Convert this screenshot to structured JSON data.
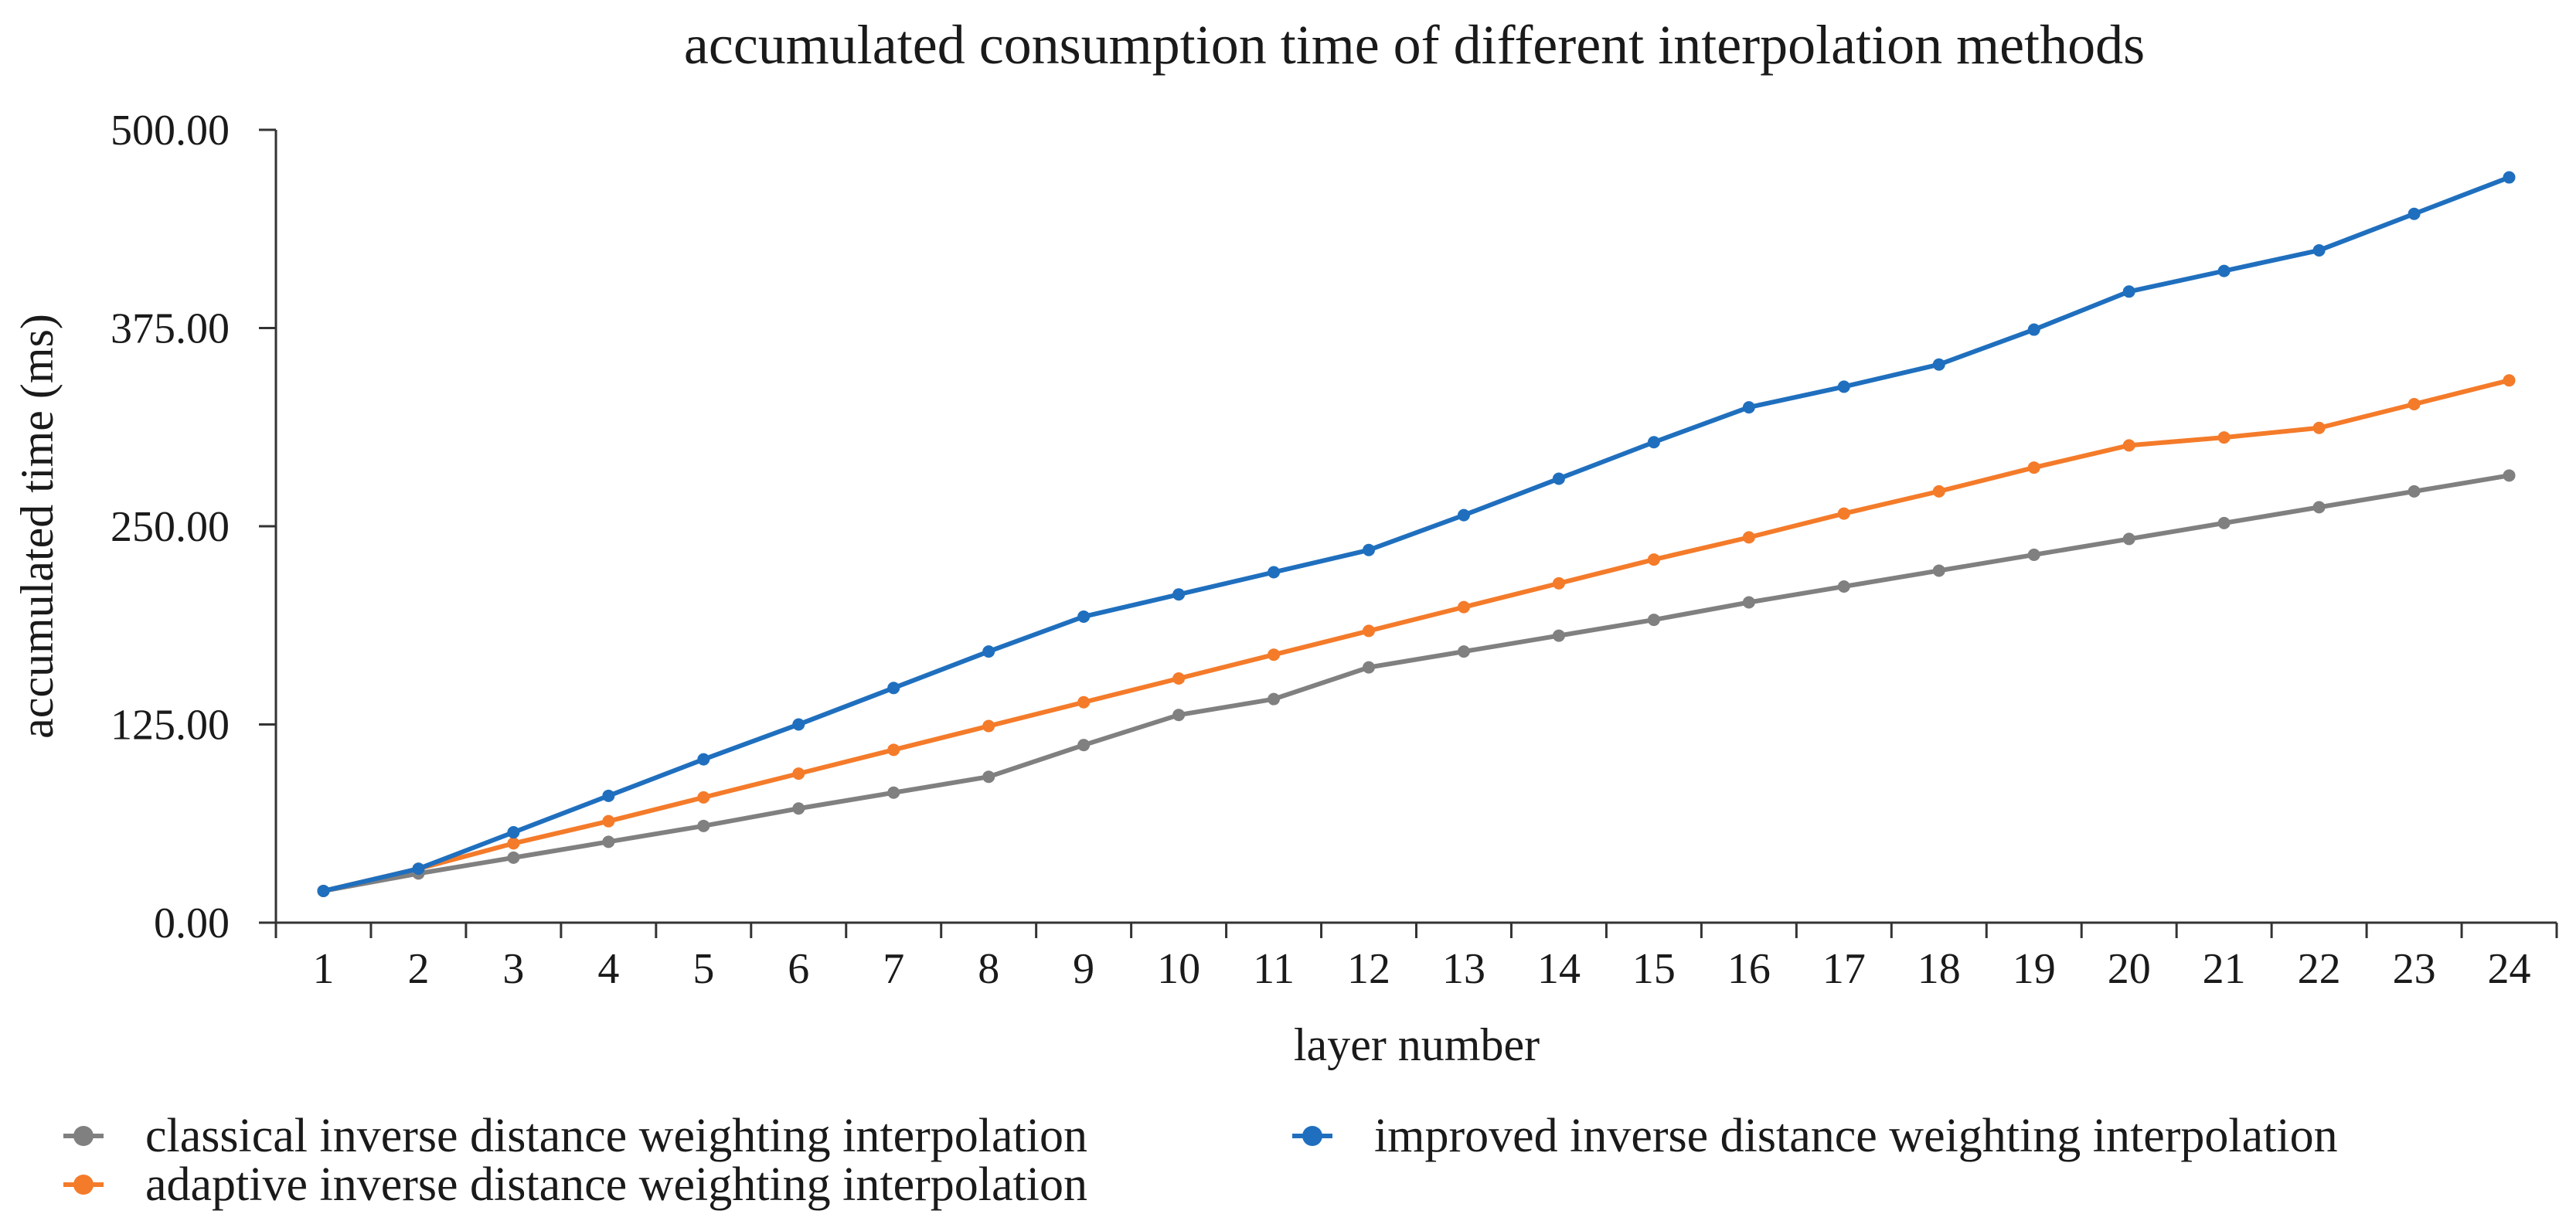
{
  "chart_data": {
    "type": "line",
    "title": "accumulated consumption time of different interpolation methods",
    "xlabel": "layer number",
    "ylabel": "accumulated time  (ms)",
    "categories": [
      "1",
      "2",
      "3",
      "4",
      "5",
      "6",
      "7",
      "8",
      "9",
      "10",
      "11",
      "12",
      "13",
      "14",
      "15",
      "16",
      "17",
      "18",
      "19",
      "20",
      "21",
      "22",
      "23",
      "24"
    ],
    "ylim": [
      0,
      500
    ],
    "yticks": [
      "0.00",
      "125.00",
      "250.00",
      "375.00",
      "500.00"
    ],
    "grid": false,
    "legend_position": "bottom",
    "series": [
      {
        "name": "classical inverse distance weighting interpolation",
        "color": "#808080",
        "values": [
          20,
          31,
          41,
          51,
          61,
          72,
          82,
          92,
          112,
          131,
          141,
          161,
          171,
          181,
          191,
          202,
          212,
          222,
          232,
          242,
          252,
          262,
          272,
          282
        ]
      },
      {
        "name": "adaptive inverse distance weighting interpolation",
        "color": "#F47B2A",
        "values": [
          20,
          34,
          50,
          64,
          79,
          94,
          109,
          124,
          139,
          154,
          169,
          184,
          199,
          214,
          229,
          243,
          258,
          272,
          287,
          301,
          306,
          312,
          327,
          342
        ]
      },
      {
        "name": "improved inverse distance weighting interpolation",
        "color": "#1F6FBE",
        "values": [
          20,
          34,
          57,
          80,
          103,
          125,
          148,
          171,
          193,
          207,
          221,
          235,
          257,
          280,
          303,
          325,
          338,
          352,
          374,
          398,
          411,
          424,
          447,
          470
        ]
      }
    ]
  }
}
